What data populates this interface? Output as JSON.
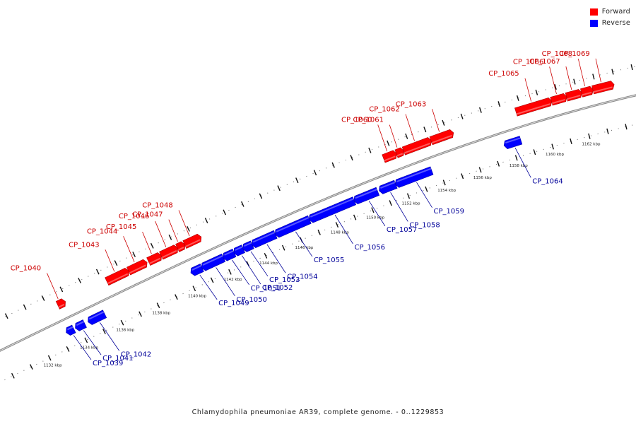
{
  "caption": "Chlamydophila pneumoniae AR39, complete genome. - 0..1229853",
  "legend": [
    {
      "label": "Forward",
      "color": "#ff0000"
    },
    {
      "label": "Reverse",
      "color": "#0000ff"
    }
  ],
  "colors": {
    "forward": "#ff0000",
    "forward_label": "#cc0000",
    "reverse": "#0000ff",
    "reverse_label": "#000099",
    "backbone": "#888888"
  },
  "ticks": [
    "1132 kbp",
    "1134 kbp",
    "1136 kbp",
    "1138 kbp",
    "1140 kbp",
    "1142 kbp",
    "1144 kbp",
    "1146 kbp",
    "1148 kbp",
    "1150 kbp",
    "1152 kbp",
    "1154 kbp",
    "1156 kbp",
    "1158 kbp",
    "1160 kbp",
    "1162 kbp"
  ],
  "genes": [
    {
      "name": "CP_1039",
      "strand": "reverse",
      "start_kbp": 1133.4,
      "end_kbp": 1133.7
    },
    {
      "name": "CP_1040",
      "strand": "forward",
      "start_kbp": 1133.5,
      "end_kbp": 1133.8
    },
    {
      "name": "CP_1041",
      "strand": "reverse",
      "start_kbp": 1133.9,
      "end_kbp": 1134.3
    },
    {
      "name": "CP_1042",
      "strand": "reverse",
      "start_kbp": 1134.6,
      "end_kbp": 1135.4
    },
    {
      "name": "CP_1043",
      "strand": "forward",
      "start_kbp": 1136.2,
      "end_kbp": 1137.3
    },
    {
      "name": "CP_1044",
      "strand": "forward",
      "start_kbp": 1137.4,
      "end_kbp": 1138.3
    },
    {
      "name": "CP_1045",
      "strand": "forward",
      "start_kbp": 1138.5,
      "end_kbp": 1139.1
    },
    {
      "name": "CP_1046",
      "strand": "forward",
      "start_kbp": 1139.2,
      "end_kbp": 1140.0
    },
    {
      "name": "CP_1047",
      "strand": "forward",
      "start_kbp": 1140.1,
      "end_kbp": 1140.4
    },
    {
      "name": "CP_1048",
      "strand": "forward",
      "start_kbp": 1140.5,
      "end_kbp": 1141.3
    },
    {
      "name": "CP_1049",
      "strand": "reverse",
      "start_kbp": 1140.3,
      "end_kbp": 1140.8
    },
    {
      "name": "CP_1050",
      "strand": "reverse",
      "start_kbp": 1140.9,
      "end_kbp": 1142.0
    },
    {
      "name": "CP_1051",
      "strand": "reverse",
      "start_kbp": 1142.1,
      "end_kbp": 1142.6
    },
    {
      "name": "CP_1052",
      "strand": "reverse",
      "start_kbp": 1142.7,
      "end_kbp": 1143.1
    },
    {
      "name": "CP_1053",
      "strand": "reverse",
      "start_kbp": 1143.2,
      "end_kbp": 1143.6
    },
    {
      "name": "CP_1054",
      "strand": "reverse",
      "start_kbp": 1143.7,
      "end_kbp": 1144.9
    },
    {
      "name": "CP_1055",
      "strand": "reverse",
      "start_kbp": 1145.0,
      "end_kbp": 1146.8
    },
    {
      "name": "CP_1056",
      "strand": "reverse",
      "start_kbp": 1146.9,
      "end_kbp": 1149.3
    },
    {
      "name": "CP_1057",
      "strand": "reverse",
      "start_kbp": 1149.4,
      "end_kbp": 1150.6
    },
    {
      "name": "CP_1058",
      "strand": "reverse",
      "start_kbp": 1150.8,
      "end_kbp": 1151.6
    },
    {
      "name": "CP_1059",
      "strand": "reverse",
      "start_kbp": 1151.7,
      "end_kbp": 1153.6
    },
    {
      "name": "CP_1060",
      "strand": "forward",
      "start_kbp": 1151.5,
      "end_kbp": 1152.1
    },
    {
      "name": "CP_1061",
      "strand": "forward",
      "start_kbp": 1152.2,
      "end_kbp": 1152.5
    },
    {
      "name": "CP_1062",
      "strand": "forward",
      "start_kbp": 1152.6,
      "end_kbp": 1154.0
    },
    {
      "name": "CP_1063",
      "strand": "forward",
      "start_kbp": 1154.1,
      "end_kbp": 1155.2
    },
    {
      "name": "CP_1064",
      "strand": "reverse",
      "start_kbp": 1157.7,
      "end_kbp": 1158.5
    },
    {
      "name": "CP_1065",
      "strand": "forward",
      "start_kbp": 1158.7,
      "end_kbp": 1160.5
    },
    {
      "name": "CP_1066",
      "strand": "forward",
      "start_kbp": 1160.6,
      "end_kbp": 1161.3
    },
    {
      "name": "CP_1067",
      "strand": "forward",
      "start_kbp": 1161.4,
      "end_kbp": 1162.1
    },
    {
      "name": "CP_1068",
      "strand": "forward",
      "start_kbp": 1162.2,
      "end_kbp": 1162.7
    },
    {
      "name": "CP_1069",
      "strand": "forward",
      "start_kbp": 1162.8,
      "end_kbp": 1163.8
    }
  ]
}
